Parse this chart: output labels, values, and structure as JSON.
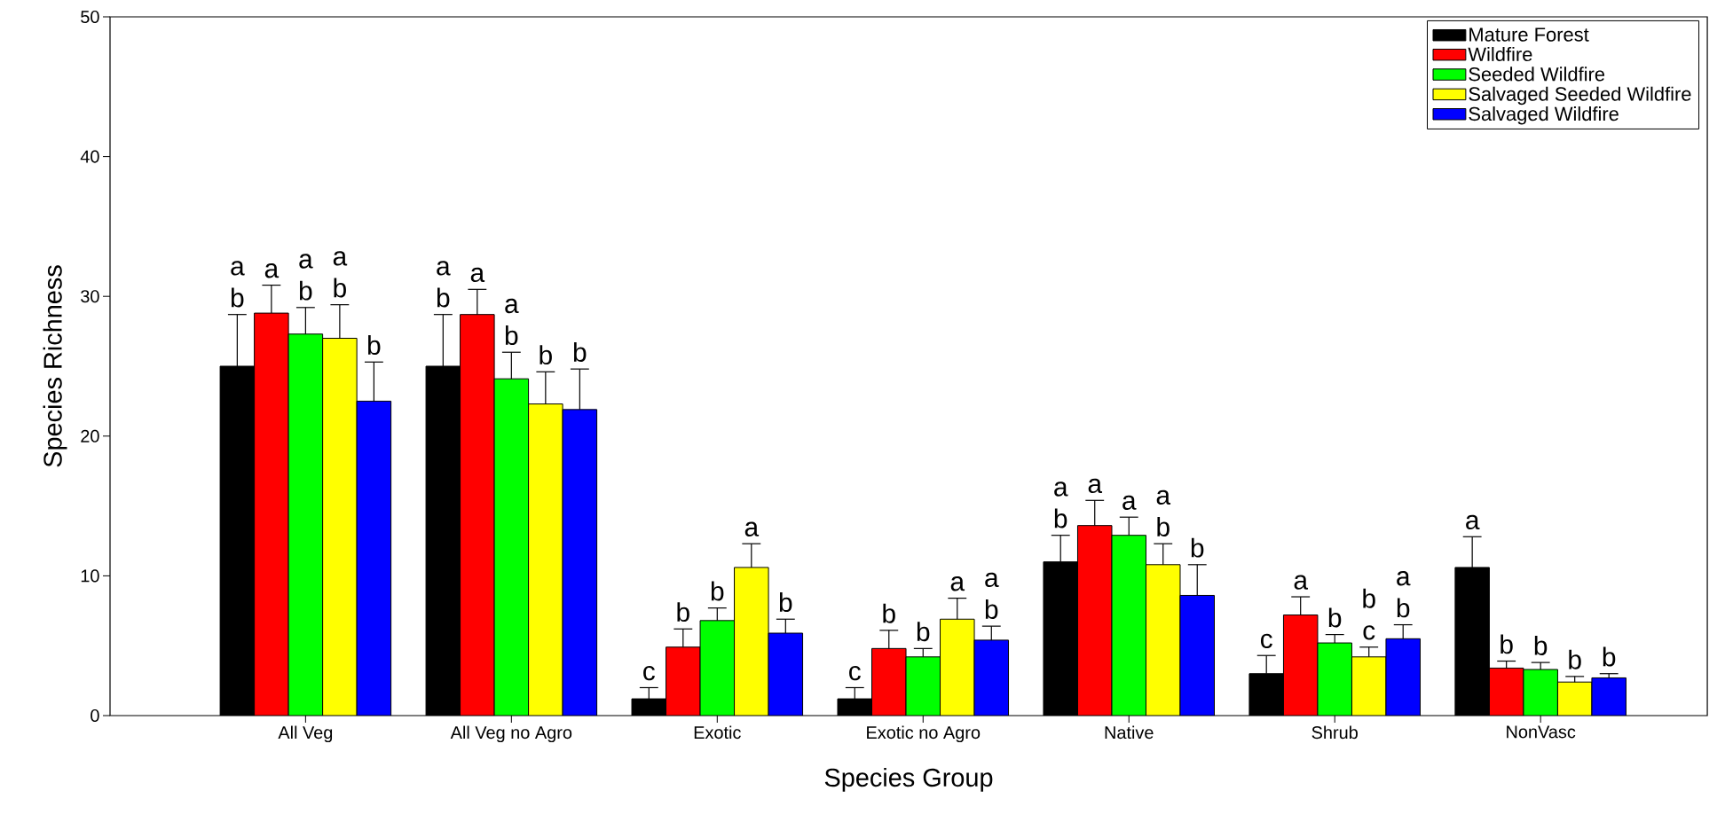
{
  "chart_data": {
    "type": "bar",
    "xlabel": "Species Group",
    "ylabel": "Species Richness",
    "categories": [
      "All Veg",
      "All Veg no Agro",
      "Exotic",
      "Exotic no Agro",
      "Native",
      "Shrub",
      "NonVasc"
    ],
    "ylim": [
      0,
      50
    ],
    "yticks": [
      0,
      10,
      20,
      30,
      40,
      50
    ],
    "grid": false,
    "legend": "top right",
    "series": [
      {
        "name": "Mature Forest",
        "color": "#000000",
        "values": [
          25.0,
          25.0,
          1.2,
          1.2,
          11.0,
          3.0,
          10.6
        ],
        "errors": [
          3.7,
          3.7,
          0.8,
          0.8,
          1.9,
          1.3,
          2.2
        ],
        "value_labels": [
          "a b",
          "a b",
          "c",
          "c",
          "a b",
          "c",
          "a"
        ]
      },
      {
        "name": "Wildfire",
        "color": "#ff0000",
        "values": [
          28.8,
          28.7,
          4.9,
          4.8,
          13.6,
          7.2,
          3.4
        ],
        "errors": [
          2.0,
          1.8,
          1.3,
          1.3,
          1.8,
          1.3,
          0.5
        ],
        "value_labels": [
          "a",
          "a",
          "b",
          "b",
          "a",
          "a",
          "b"
        ]
      },
      {
        "name": "Seeded Wildfire",
        "color": "#00ff00",
        "values": [
          27.3,
          24.1,
          6.8,
          4.2,
          12.9,
          5.2,
          3.3
        ],
        "errors": [
          1.9,
          1.9,
          0.9,
          0.6,
          1.3,
          0.6,
          0.5
        ],
        "value_labels": [
          "a b",
          "a b",
          "b",
          "b",
          "a",
          "b",
          "b"
        ]
      },
      {
        "name": "Salvaged Seeded Wildfire",
        "color": "#ffff00",
        "values": [
          27.0,
          22.3,
          10.6,
          6.9,
          10.8,
          4.2,
          2.4
        ],
        "errors": [
          2.4,
          2.3,
          1.7,
          1.5,
          1.5,
          0.7,
          0.4
        ],
        "value_labels": [
          "a b",
          "b",
          "a",
          "a",
          "a b",
          "b c",
          "b"
        ]
      },
      {
        "name": "Salvaged Wildfire",
        "color": "#0000ff",
        "values": [
          22.5,
          21.9,
          5.9,
          5.4,
          8.6,
          5.5,
          2.7
        ],
        "errors": [
          2.8,
          2.9,
          1.0,
          1.0,
          2.2,
          1.0,
          0.3
        ],
        "value_labels": [
          "b",
          "b",
          "b",
          "a b",
          "b",
          "a b",
          "b"
        ]
      }
    ]
  }
}
